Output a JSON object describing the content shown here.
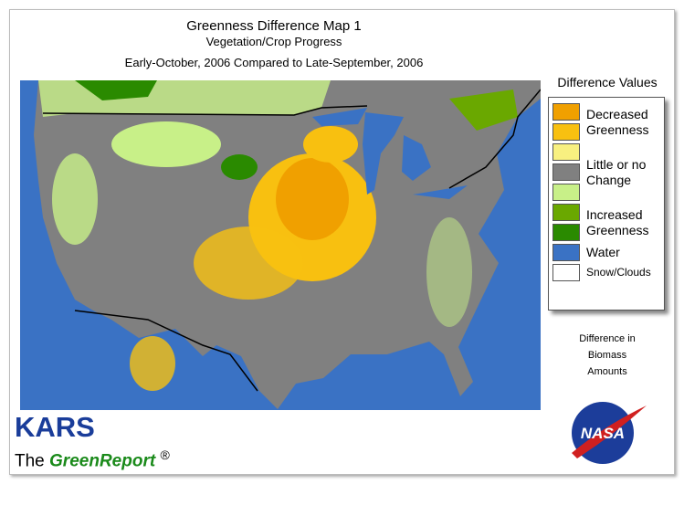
{
  "header": {
    "title": "Greenness Difference Map 1",
    "subtitle": "Vegetation/Crop Progress",
    "period": "Early-October, 2006 Compared to Late-September, 2006"
  },
  "legend": {
    "title": "Difference Values",
    "groups": [
      {
        "label": "Decreased Greenness",
        "colors": [
          "#f0a000",
          "#f8c010"
        ]
      },
      {
        "label": "Little or no Change",
        "colors": [
          "#f8f080",
          "#808080",
          "#c8f088"
        ]
      },
      {
        "label": "Increased Greenness",
        "colors": [
          "#6aa800",
          "#2a8a00"
        ]
      },
      {
        "label": "Water",
        "colors": [
          "#3a72c4"
        ]
      },
      {
        "label": "Snow/Clouds",
        "colors": [
          "#ffffff"
        ]
      }
    ],
    "note": "Difference in Biomass Amounts"
  },
  "footer": {
    "brand": "KARS",
    "prefix": "The",
    "product": "GreenReport",
    "mark": "®",
    "logo": "NASA"
  }
}
